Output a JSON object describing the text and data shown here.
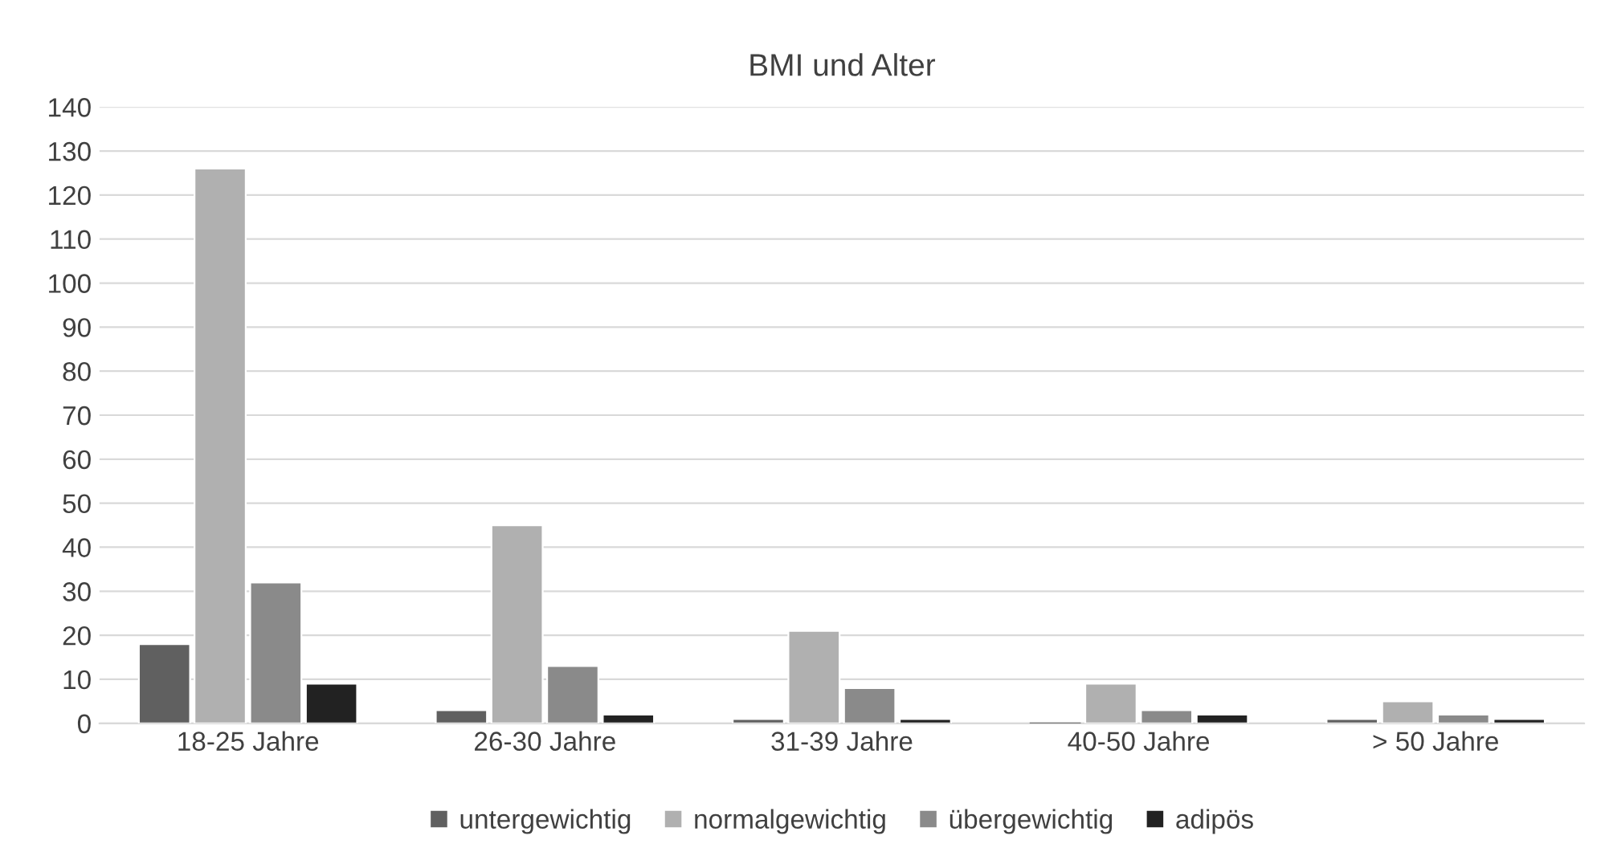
{
  "chart_data": {
    "type": "bar",
    "title": "BMI und Alter",
    "categories": [
      "18-25 Jahre",
      "26-30 Jahre",
      "31-39 Jahre",
      "40-50 Jahre",
      "> 50 Jahre"
    ],
    "series": [
      {
        "name": "untergewichtig",
        "color": "#606060",
        "values": [
          18,
          3,
          1,
          0,
          1
        ]
      },
      {
        "name": "normalgewichtig",
        "color": "#b0b0b0",
        "values": [
          126,
          45,
          21,
          9,
          5
        ]
      },
      {
        "name": "übergewichtig",
        "color": "#8a8a8a",
        "values": [
          32,
          13,
          8,
          3,
          2
        ]
      },
      {
        "name": "adipös",
        "color": "#222222",
        "values": [
          9,
          2,
          1,
          2,
          1
        ]
      }
    ],
    "ylim": [
      0,
      140
    ],
    "yticks": [
      0,
      10,
      20,
      30,
      40,
      50,
      60,
      70,
      80,
      90,
      100,
      110,
      120,
      130,
      140
    ],
    "grid": "y",
    "legend": "bottom"
  }
}
